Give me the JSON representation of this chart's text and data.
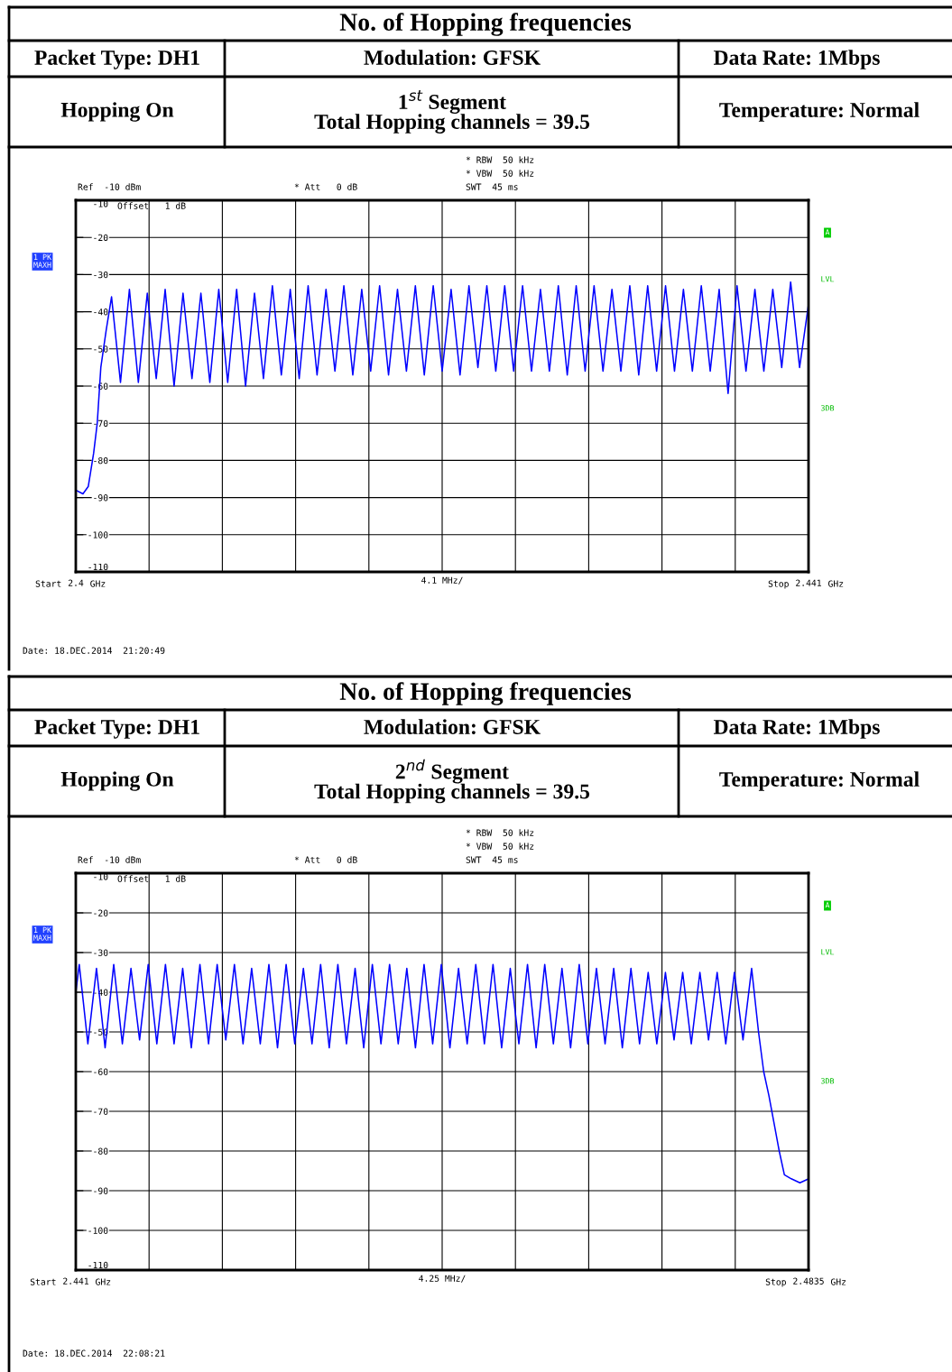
{
  "chart_data": [
    {
      "type": "line",
      "title": "No. of Hopping frequencies",
      "xlabel": "4.1 MHz/",
      "annotations": [
        "Packet Type: DH1",
        "Modulation: GFSK",
        "Data Rate: 1Mbps",
        "Hopping On",
        "1$^{st}$ Segment\nTotal Hopping channels = 39.5",
        "Temperature: Normal",
        "* RBW  50 kHz",
        "* VBW  50 kHz",
        "SWT  45 ms",
        "Ref  -10 dBm",
        "* Att   0 dB",
        "Offset   1 dB",
        "1 PK\nMAXH",
        "A",
        "LVL",
        "3DB",
        "Date: 18.DEC.2014  21:20:49",
        "Start",
        "GHz",
        "Stop",
        "GHz"
      ],
      "xlim": [
        2.4,
        2.441
      ],
      "ylim": [
        -110,
        -10
      ],
      "xticks": [
        2.4,
        {
          "value": 2.4041,
          "label": null
        },
        {
          "value": 2.4082,
          "label": null
        },
        {
          "value": 2.4123,
          "label": null
        },
        {
          "value": 2.4164,
          "label": null
        },
        {
          "value": 2.4205,
          "label": null
        },
        {
          "value": 2.4246,
          "label": null
        },
        {
          "value": 2.4287,
          "label": null
        },
        {
          "value": 2.4328,
          "label": null
        },
        {
          "value": 2.4369,
          "label": null
        },
        2.441
      ],
      "yticks": [
        -10,
        -20,
        -30,
        -40,
        -50,
        -60,
        -70,
        -80,
        -90,
        -100,
        -110
      ],
      "grid": true,
      "line_style": "solid",
      "marker": "none",
      "series": [
        {
          "color": "#0000ff",
          "x": [
            2.4,
            2.4004,
            2.4007,
            2.401,
            2.4012,
            2.4014,
            2.4017,
            2.402,
            2.4025,
            2.403,
            2.4035,
            2.404,
            2.4045,
            2.405,
            2.4055,
            2.406,
            2.4065,
            2.407,
            2.4075,
            2.408,
            2.4085,
            2.409,
            2.4095,
            2.41,
            2.4105,
            2.411,
            2.4115,
            2.412,
            2.4125,
            2.413,
            2.4135,
            2.414,
            2.4145,
            2.415,
            2.4155,
            2.416,
            2.4165,
            2.417,
            2.4175,
            2.418,
            2.4185,
            2.419,
            2.4195,
            2.42,
            2.4205,
            2.421,
            2.4215,
            2.422,
            2.4225,
            2.423,
            2.4235,
            2.424,
            2.4245,
            2.425,
            2.4255,
            2.426,
            2.4265,
            2.427,
            2.4275,
            2.428,
            2.4285,
            2.429,
            2.4295,
            2.43,
            2.4305,
            2.431,
            2.4315,
            2.432,
            2.4325,
            2.433,
            2.4335,
            2.434,
            2.4345,
            2.435,
            2.4355,
            2.436,
            2.4365,
            2.437,
            2.4375,
            2.438,
            2.4385,
            2.439,
            2.4395,
            2.44,
            2.4405,
            2.441
          ],
          "values": [
            -88,
            -89,
            -87,
            -78,
            -70,
            -55,
            -45,
            -36,
            -59,
            -34,
            -59,
            -35,
            -58,
            -34,
            -60,
            -35,
            -58,
            -35,
            -59,
            -34,
            -59,
            -34,
            -60,
            -35,
            -58,
            -33,
            -57,
            -34,
            -58,
            -33,
            -57,
            -34,
            -56,
            -33,
            -57,
            -34,
            -56,
            -33,
            -57,
            -34,
            -56,
            -33,
            -57,
            -33,
            -56,
            -34,
            -57,
            -33,
            -55,
            -33,
            -56,
            -33,
            -56,
            -33,
            -56,
            -34,
            -56,
            -33,
            -57,
            -33,
            -56,
            -33,
            -56,
            -34,
            -56,
            -33,
            -57,
            -33,
            -56,
            -33,
            -56,
            -34,
            -56,
            -33,
            -56,
            -34,
            -62,
            -33,
            -56,
            -34,
            -56,
            -34,
            -55,
            -32,
            -55,
            -38
          ]
        }
      ]
    },
    {
      "type": "line",
      "title": "No. of Hopping frequencies",
      "xlabel": "4.25 MHz/",
      "annotations": [
        "Packet Type: DH1",
        "Modulation: GFSK",
        "Data Rate: 1Mbps",
        "Hopping On",
        "2$^{nd}$ Segment\nTotal Hopping channels = 39.5",
        "Temperature: Normal",
        "* RBW  50 kHz",
        "* VBW  50 kHz",
        "SWT  45 ms",
        "Ref  -10 dBm",
        "* Att   0 dB",
        "Offset   1 dB",
        "1 PK\nMAXH",
        "A",
        "LVL",
        "3DB",
        "Date: 18.DEC.2014  22:08:21",
        "Start",
        "GHz",
        "Stop",
        "GHz"
      ],
      "xlim": [
        2.441,
        2.4835
      ],
      "ylim": [
        -110,
        -10
      ],
      "xticks": [
        2.441,
        {
          "value": 2.44525,
          "label": null
        },
        {
          "value": 2.4495,
          "label": null
        },
        {
          "value": 2.45375,
          "label": null
        },
        {
          "value": 2.458,
          "label": null
        },
        {
          "value": 2.46225,
          "label": null
        },
        {
          "value": 2.4665,
          "label": null
        },
        {
          "value": 2.47075,
          "label": null
        },
        {
          "value": 2.475,
          "label": null
        },
        {
          "value": 2.47925,
          "label": null
        },
        2.4835
      ],
      "yticks": [
        -10,
        -20,
        -30,
        -40,
        -50,
        -60,
        -70,
        -80,
        -90,
        -100,
        -110
      ],
      "grid": true,
      "line_style": "solid",
      "marker": "none",
      "series": [
        {
          "color": "#0000ff",
          "x": [
            2.441,
            2.4412,
            2.4417,
            2.4422,
            2.4427,
            2.4432,
            2.4437,
            2.4442,
            2.4447,
            2.4452,
            2.4457,
            2.4462,
            2.4467,
            2.4472,
            2.4477,
            2.4482,
            2.4487,
            2.4492,
            2.4497,
            2.4502,
            2.4507,
            2.4512,
            2.4517,
            2.4522,
            2.4527,
            2.4532,
            2.4537,
            2.4542,
            2.4547,
            2.4552,
            2.4557,
            2.4562,
            2.4567,
            2.4572,
            2.4577,
            2.4582,
            2.4587,
            2.4592,
            2.4597,
            2.4602,
            2.4607,
            2.4612,
            2.4617,
            2.4622,
            2.4627,
            2.4632,
            2.4637,
            2.4642,
            2.4647,
            2.4652,
            2.4657,
            2.4662,
            2.4667,
            2.4672,
            2.4677,
            2.4682,
            2.4687,
            2.4692,
            2.4697,
            2.4702,
            2.4707,
            2.4712,
            2.4717,
            2.4722,
            2.4727,
            2.4732,
            2.4737,
            2.4742,
            2.4747,
            2.4752,
            2.4757,
            2.4762,
            2.4767,
            2.4772,
            2.4777,
            2.4782,
            2.4787,
            2.4792,
            2.4797,
            2.4802,
            2.4806,
            2.4809,
            2.4812,
            2.4815,
            2.4818,
            2.4821,
            2.4825,
            2.483,
            2.4835
          ],
          "values": [
            -40,
            -33,
            -53,
            -34,
            -54,
            -33,
            -53,
            -34,
            -52,
            -33,
            -53,
            -33,
            -53,
            -34,
            -54,
            -33,
            -53,
            -33,
            -52,
            -33,
            -53,
            -34,
            -53,
            -33,
            -54,
            -33,
            -53,
            -34,
            -53,
            -33,
            -54,
            -33,
            -53,
            -34,
            -54,
            -33,
            -53,
            -33,
            -53,
            -34,
            -54,
            -33,
            -53,
            -33,
            -54,
            -34,
            -53,
            -33,
            -53,
            -33,
            -54,
            -34,
            -53,
            -33,
            -54,
            -33,
            -53,
            -34,
            -54,
            -33,
            -53,
            -34,
            -53,
            -34,
            -54,
            -34,
            -53,
            -35,
            -53,
            -35,
            -52,
            -35,
            -53,
            -35,
            -52,
            -35,
            -53,
            -35,
            -52,
            -34,
            -50,
            -60,
            -66,
            -73,
            -80,
            -86,
            -87,
            -88,
            -87
          ]
        }
      ]
    }
  ]
}
